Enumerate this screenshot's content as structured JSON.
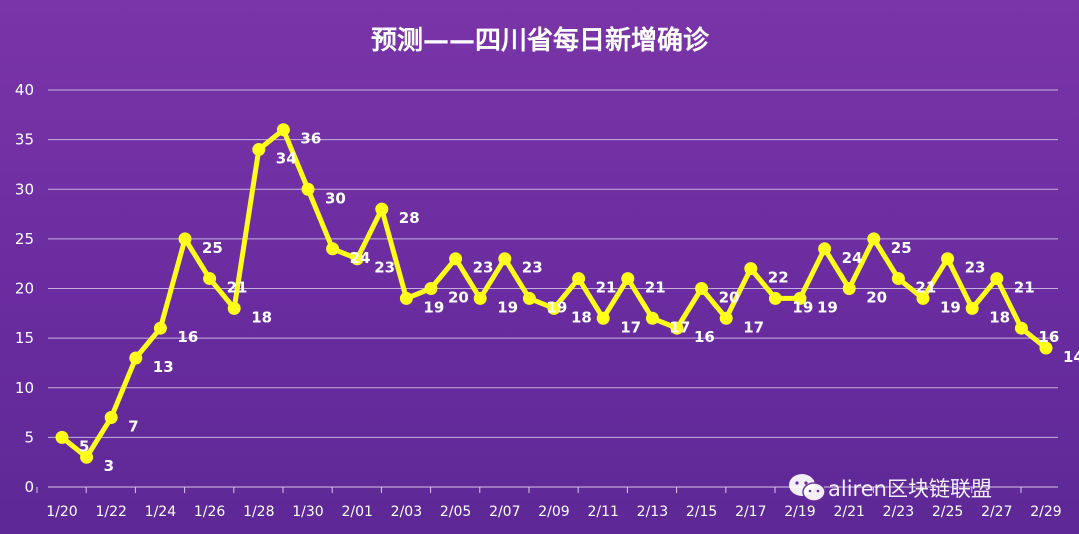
{
  "chart_data": {
    "type": "line",
    "title": "预测——四川省每日新增确诊",
    "xlabel": "",
    "ylabel": "",
    "ylim": [
      0,
      40
    ],
    "yticks": [
      0,
      5,
      10,
      15,
      20,
      25,
      30,
      35,
      40
    ],
    "grid": true,
    "legend": "none",
    "x": [
      "1/20",
      "1/21",
      "1/22",
      "1/23",
      "1/24",
      "1/25",
      "1/26",
      "1/27",
      "1/28",
      "1/29",
      "1/30",
      "1/31",
      "2/01",
      "2/02",
      "2/03",
      "2/04",
      "2/05",
      "2/06",
      "2/07",
      "2/08",
      "2/09",
      "2/10",
      "2/11",
      "2/12",
      "2/13",
      "2/14",
      "2/15",
      "2/16",
      "2/17",
      "2/18",
      "2/19",
      "2/20",
      "2/21",
      "2/22",
      "2/23",
      "2/24",
      "2/25",
      "2/26",
      "2/27",
      "2/28",
      "2/29"
    ],
    "xtick_labels": [
      "1/20",
      "1/22",
      "1/24",
      "1/26",
      "1/28",
      "1/30",
      "2/01",
      "2/03",
      "2/05",
      "2/07",
      "2/09",
      "2/11",
      "2/13",
      "2/15",
      "2/17",
      "2/19",
      "2/21",
      "2/23",
      "2/25",
      "2/27",
      "2/29"
    ],
    "series": [
      {
        "values": [
          5,
          3,
          7,
          13,
          16,
          25,
          21,
          18,
          34,
          36,
          30,
          24,
          23,
          28,
          19,
          20,
          23,
          19,
          23,
          19,
          18,
          21,
          17,
          21,
          17,
          16,
          20,
          17,
          22,
          19,
          19,
          24,
          20,
          25,
          21,
          19,
          23,
          18,
          21,
          16,
          14
        ],
        "color": "#ffff1a"
      }
    ]
  },
  "watermark": {
    "text": "aliren区块链联盟",
    "icon": "wechat-icon"
  },
  "colors": {
    "background": "#6a2ca0",
    "line": "#ffff1a",
    "text": "#ffffff"
  }
}
